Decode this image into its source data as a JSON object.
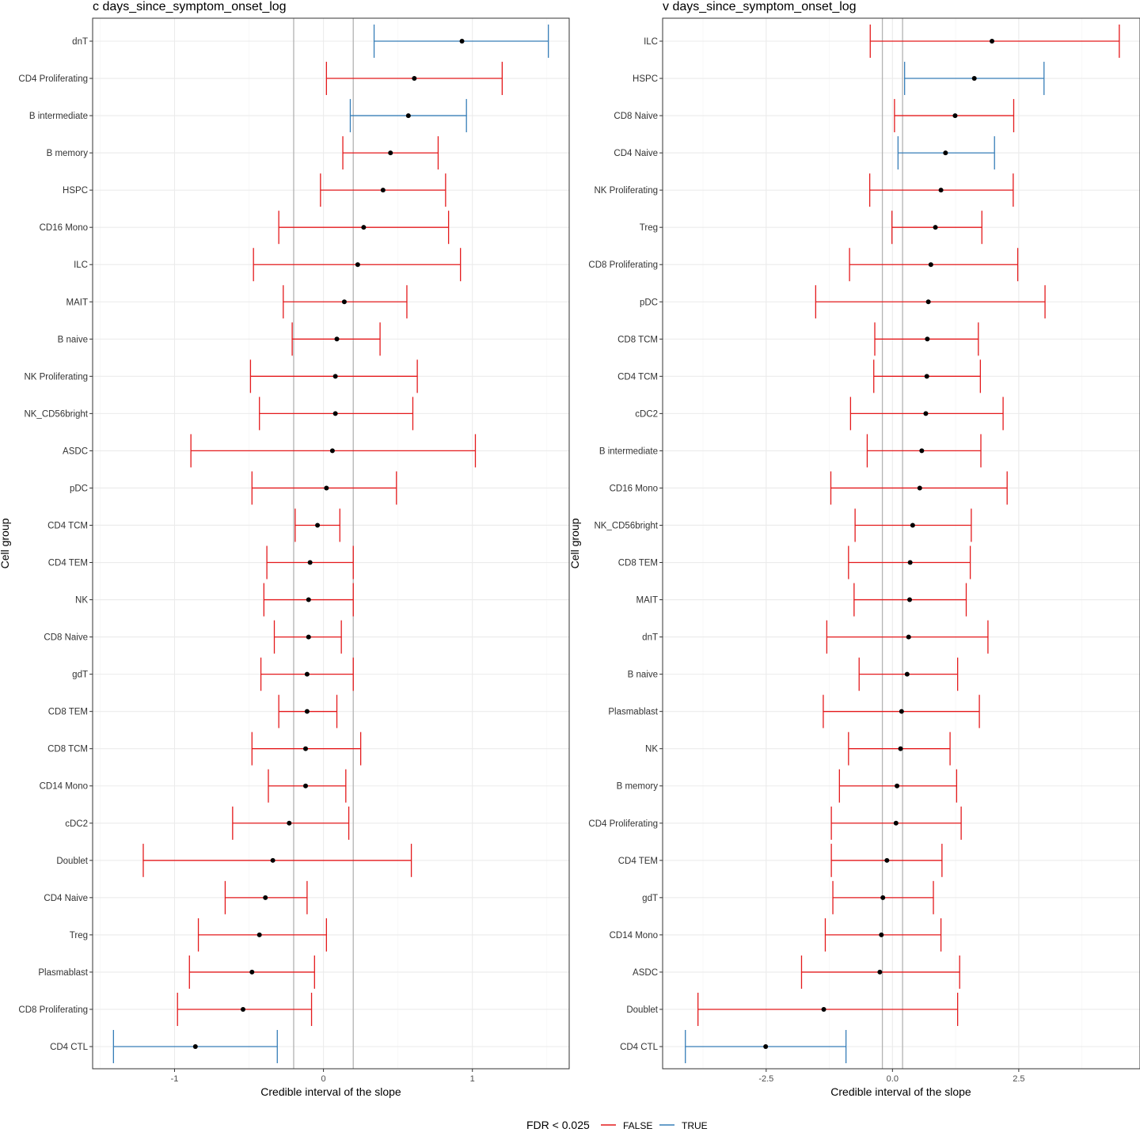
{
  "chart_data": [
    {
      "type": "forest",
      "title": "c days_since_symptom_onset_log",
      "xlabel": "Credible interval of the slope",
      "ylabel": "Cell group",
      "xlim": [
        -1.55,
        1.65
      ],
      "xticks": [
        -1,
        0,
        1
      ],
      "xtick_labels": [
        "-1",
        "0",
        "1"
      ],
      "reference_lines": [
        -0.2,
        0.2
      ],
      "rows": [
        {
          "label": "dnT",
          "estimate": 0.93,
          "lower": 0.34,
          "upper": 1.51,
          "fdr": "TRUE"
        },
        {
          "label": "CD4 Proliferating",
          "estimate": 0.61,
          "lower": 0.02,
          "upper": 1.2,
          "fdr": "FALSE"
        },
        {
          "label": "B intermediate",
          "estimate": 0.57,
          "lower": 0.18,
          "upper": 0.96,
          "fdr": "TRUE"
        },
        {
          "label": "B memory",
          "estimate": 0.45,
          "lower": 0.13,
          "upper": 0.77,
          "fdr": "FALSE"
        },
        {
          "label": "HSPC",
          "estimate": 0.4,
          "lower": -0.02,
          "upper": 0.82,
          "fdr": "FALSE"
        },
        {
          "label": "CD16 Mono",
          "estimate": 0.27,
          "lower": -0.3,
          "upper": 0.84,
          "fdr": "FALSE"
        },
        {
          "label": "ILC",
          "estimate": 0.23,
          "lower": -0.47,
          "upper": 0.92,
          "fdr": "FALSE"
        },
        {
          "label": "MAIT",
          "estimate": 0.14,
          "lower": -0.27,
          "upper": 0.56,
          "fdr": "FALSE"
        },
        {
          "label": "B naive",
          "estimate": 0.09,
          "lower": -0.21,
          "upper": 0.38,
          "fdr": "FALSE"
        },
        {
          "label": "NK Proliferating",
          "estimate": 0.08,
          "lower": -0.49,
          "upper": 0.63,
          "fdr": "FALSE"
        },
        {
          "label": "NK_CD56bright",
          "estimate": 0.08,
          "lower": -0.43,
          "upper": 0.6,
          "fdr": "FALSE"
        },
        {
          "label": "ASDC",
          "estimate": 0.06,
          "lower": -0.89,
          "upper": 1.02,
          "fdr": "FALSE"
        },
        {
          "label": "pDC",
          "estimate": 0.02,
          "lower": -0.48,
          "upper": 0.49,
          "fdr": "FALSE"
        },
        {
          "label": "CD4 TCM",
          "estimate": -0.04,
          "lower": -0.19,
          "upper": 0.11,
          "fdr": "FALSE"
        },
        {
          "label": "CD4 TEM",
          "estimate": -0.09,
          "lower": -0.38,
          "upper": 0.2,
          "fdr": "FALSE"
        },
        {
          "label": "NK",
          "estimate": -0.1,
          "lower": -0.4,
          "upper": 0.2,
          "fdr": "FALSE"
        },
        {
          "label": "CD8 Naive",
          "estimate": -0.1,
          "lower": -0.33,
          "upper": 0.12,
          "fdr": "FALSE"
        },
        {
          "label": "gdT",
          "estimate": -0.11,
          "lower": -0.42,
          "upper": 0.2,
          "fdr": "FALSE"
        },
        {
          "label": "CD8 TEM",
          "estimate": -0.11,
          "lower": -0.3,
          "upper": 0.09,
          "fdr": "FALSE"
        },
        {
          "label": "CD8 TCM",
          "estimate": -0.12,
          "lower": -0.48,
          "upper": 0.25,
          "fdr": "FALSE"
        },
        {
          "label": "CD14 Mono",
          "estimate": -0.12,
          "lower": -0.37,
          "upper": 0.15,
          "fdr": "FALSE"
        },
        {
          "label": "cDC2",
          "estimate": -0.23,
          "lower": -0.61,
          "upper": 0.17,
          "fdr": "FALSE"
        },
        {
          "label": "Doublet",
          "estimate": -0.34,
          "lower": -1.21,
          "upper": 0.59,
          "fdr": "FALSE"
        },
        {
          "label": "CD4 Naive",
          "estimate": -0.39,
          "lower": -0.66,
          "upper": -0.11,
          "fdr": "FALSE"
        },
        {
          "label": "Treg",
          "estimate": -0.43,
          "lower": -0.84,
          "upper": 0.02,
          "fdr": "FALSE"
        },
        {
          "label": "Plasmablast",
          "estimate": -0.48,
          "lower": -0.9,
          "upper": -0.06,
          "fdr": "FALSE"
        },
        {
          "label": "CD8 Proliferating",
          "estimate": -0.54,
          "lower": -0.98,
          "upper": -0.08,
          "fdr": "FALSE"
        },
        {
          "label": "CD4 CTL",
          "estimate": -0.86,
          "lower": -1.41,
          "upper": -0.31,
          "fdr": "TRUE"
        }
      ]
    },
    {
      "type": "forest",
      "title": "v days_since_symptom_onset_log",
      "xlabel": "Credible interval of the slope",
      "ylabel": "Cell group",
      "xlim": [
        -4.55,
        4.9
      ],
      "xticks": [
        -2.5,
        0,
        2.5
      ],
      "xtick_labels": [
        "-2.5",
        "0.0",
        "2.5"
      ],
      "reference_lines": [
        -0.2,
        0.2
      ],
      "rows": [
        {
          "label": "ILC",
          "estimate": 1.97,
          "lower": -0.44,
          "upper": 4.49,
          "fdr": "FALSE"
        },
        {
          "label": "HSPC",
          "estimate": 1.62,
          "lower": 0.24,
          "upper": 3.0,
          "fdr": "TRUE"
        },
        {
          "label": "CD8 Naive",
          "estimate": 1.24,
          "lower": 0.04,
          "upper": 2.4,
          "fdr": "FALSE"
        },
        {
          "label": "CD4 Naive",
          "estimate": 1.05,
          "lower": 0.11,
          "upper": 2.02,
          "fdr": "TRUE"
        },
        {
          "label": "NK Proliferating",
          "estimate": 0.96,
          "lower": -0.45,
          "upper": 2.39,
          "fdr": "FALSE"
        },
        {
          "label": "Treg",
          "estimate": 0.85,
          "lower": -0.01,
          "upper": 1.77,
          "fdr": "FALSE"
        },
        {
          "label": "CD8 Proliferating",
          "estimate": 0.76,
          "lower": -0.85,
          "upper": 2.48,
          "fdr": "FALSE"
        },
        {
          "label": "pDC",
          "estimate": 0.71,
          "lower": -1.52,
          "upper": 3.02,
          "fdr": "FALSE"
        },
        {
          "label": "CD8 TCM",
          "estimate": 0.69,
          "lower": -0.35,
          "upper": 1.7,
          "fdr": "FALSE"
        },
        {
          "label": "CD4 TCM",
          "estimate": 0.68,
          "lower": -0.37,
          "upper": 1.74,
          "fdr": "FALSE"
        },
        {
          "label": "cDC2",
          "estimate": 0.66,
          "lower": -0.83,
          "upper": 2.19,
          "fdr": "FALSE"
        },
        {
          "label": "B intermediate",
          "estimate": 0.58,
          "lower": -0.5,
          "upper": 1.75,
          "fdr": "FALSE"
        },
        {
          "label": "CD16 Mono",
          "estimate": 0.54,
          "lower": -1.22,
          "upper": 2.27,
          "fdr": "FALSE"
        },
        {
          "label": "NK_CD56bright",
          "estimate": 0.4,
          "lower": -0.74,
          "upper": 1.56,
          "fdr": "FALSE"
        },
        {
          "label": "CD8 TEM",
          "estimate": 0.35,
          "lower": -0.87,
          "upper": 1.54,
          "fdr": "FALSE"
        },
        {
          "label": "MAIT",
          "estimate": 0.34,
          "lower": -0.76,
          "upper": 1.46,
          "fdr": "FALSE"
        },
        {
          "label": "dnT",
          "estimate": 0.32,
          "lower": -1.3,
          "upper": 1.89,
          "fdr": "FALSE"
        },
        {
          "label": "B naive",
          "estimate": 0.29,
          "lower": -0.66,
          "upper": 1.29,
          "fdr": "FALSE"
        },
        {
          "label": "Plasmablast",
          "estimate": 0.18,
          "lower": -1.37,
          "upper": 1.72,
          "fdr": "FALSE"
        },
        {
          "label": "NK",
          "estimate": 0.16,
          "lower": -0.87,
          "upper": 1.14,
          "fdr": "FALSE"
        },
        {
          "label": "B memory",
          "estimate": 0.09,
          "lower": -1.05,
          "upper": 1.27,
          "fdr": "FALSE"
        },
        {
          "label": "CD4 Proliferating",
          "estimate": 0.07,
          "lower": -1.21,
          "upper": 1.36,
          "fdr": "FALSE"
        },
        {
          "label": "CD4 TEM",
          "estimate": -0.11,
          "lower": -1.21,
          "upper": 0.98,
          "fdr": "FALSE"
        },
        {
          "label": "gdT",
          "estimate": -0.19,
          "lower": -1.18,
          "upper": 0.81,
          "fdr": "FALSE"
        },
        {
          "label": "CD14 Mono",
          "estimate": -0.22,
          "lower": -1.33,
          "upper": 0.96,
          "fdr": "FALSE"
        },
        {
          "label": "ASDC",
          "estimate": -0.25,
          "lower": -1.8,
          "upper": 1.33,
          "fdr": "FALSE"
        },
        {
          "label": "Doublet",
          "estimate": -1.36,
          "lower": -3.85,
          "upper": 1.29,
          "fdr": "FALSE"
        },
        {
          "label": "CD4 CTL",
          "estimate": -2.51,
          "lower": -4.1,
          "upper": -0.92,
          "fdr": "TRUE"
        }
      ]
    }
  ],
  "legend": {
    "title": "FDR < 0.025",
    "placement": "bottom",
    "items": [
      {
        "label": "FALSE",
        "color": "#e41a1c"
      },
      {
        "label": "TRUE",
        "color": "#377eb8"
      }
    ]
  },
  "colors": {
    "false": "#e41a1c",
    "true": "#377eb8",
    "grid_major": "#ebebeb",
    "grid_minor": "#f5f5f5",
    "panel_border": "#333333",
    "reference_line": "#b3b3b3"
  }
}
